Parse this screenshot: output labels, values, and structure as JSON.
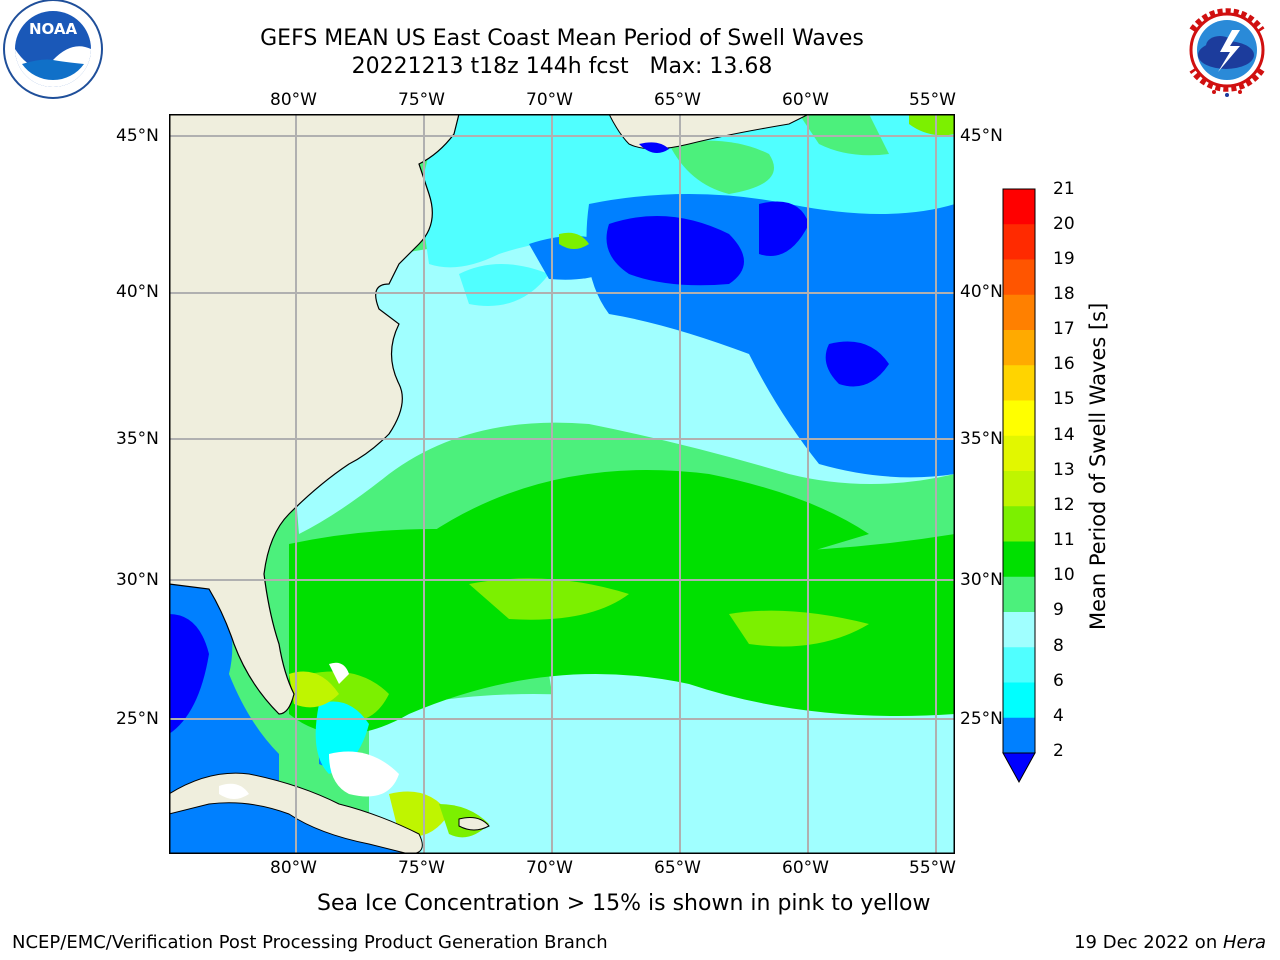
{
  "header": {
    "title_line1": "GEFS MEAN US East Coast Mean Period of Swell Waves",
    "title_line2": "20221213 t18z 144h fcst   Max: 13.68"
  },
  "logos": {
    "noara_text": "NOAA",
    "noaa_ring_text": "NATIONAL OCEANIC AND ATMOSPHERIC ADMINISTRATION · U.S. DEPARTMENT OF COMMERCE",
    "nws_ring_text": "NATIONAL WEATHER SERVICE"
  },
  "map": {
    "lon_labels": [
      "80°W",
      "75°W",
      "70°W",
      "65°W",
      "60°W",
      "55°W"
    ],
    "lat_labels": [
      "45°N",
      "40°N",
      "35°N",
      "30°N",
      "25°N"
    ],
    "colors": {
      "land": "#efeedd",
      "gridline": "#b0b0b0",
      "ice_free_white": "#ffffff"
    }
  },
  "colorbar": {
    "label": "Mean Period of Swell Waves [s]",
    "ticks": [
      "21",
      "20",
      "19",
      "18",
      "17",
      "16",
      "15",
      "14",
      "13",
      "12",
      "11",
      "10",
      "9",
      "8",
      "6",
      "4",
      "2"
    ],
    "bins": [
      {
        "from": 20,
        "to": 21,
        "color": "#ff0000"
      },
      {
        "from": 19,
        "to": 20,
        "color": "#ff2a00"
      },
      {
        "from": 18,
        "to": 19,
        "color": "#ff5500"
      },
      {
        "from": 17,
        "to": 18,
        "color": "#ff8000"
      },
      {
        "from": 16,
        "to": 17,
        "color": "#ffaa00"
      },
      {
        "from": 15,
        "to": 16,
        "color": "#ffd400"
      },
      {
        "from": 14,
        "to": 15,
        "color": "#ffff00"
      },
      {
        "from": 13,
        "to": 14,
        "color": "#e2f700"
      },
      {
        "from": 12,
        "to": 13,
        "color": "#bff500"
      },
      {
        "from": 11,
        "to": 12,
        "color": "#7cf000"
      },
      {
        "from": 10,
        "to": 11,
        "color": "#00e000"
      },
      {
        "from": 9,
        "to": 10,
        "color": "#4cf07c"
      },
      {
        "from": 8,
        "to": 9,
        "color": "#a0ffff"
      },
      {
        "from": 6,
        "to": 8,
        "color": "#50ffff"
      },
      {
        "from": 4,
        "to": 6,
        "color": "#00ffff"
      },
      {
        "from": 2,
        "to": 4,
        "color": "#0080ff"
      }
    ],
    "extend_color": "#0000ff"
  },
  "caption": "Sea Ice Concentration > 15% is shown in pink to yellow",
  "footer": {
    "left": "NCEP/EMC/Verification Post Processing Product Generation Branch",
    "right_date": "19 Dec 2022 on ",
    "right_machine": "Hera"
  }
}
